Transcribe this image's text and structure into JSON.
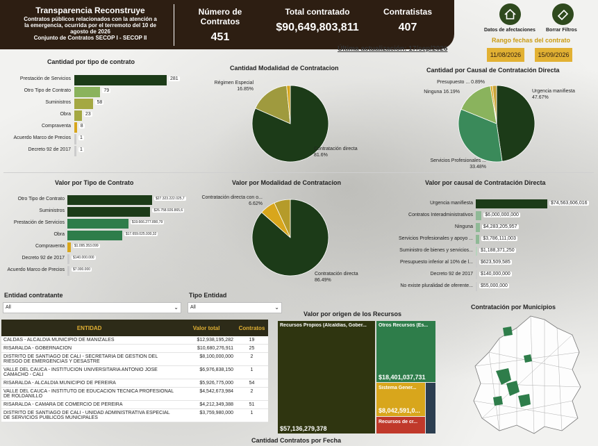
{
  "colors": {
    "dark_green": "#1c3b18",
    "green": "#2e7d4a",
    "light_green": "#8ab35d",
    "olive": "#a4a842",
    "gold": "#d8a61c",
    "brown": "#2d1e12"
  },
  "header": {
    "title": "Transparencia Reconstruye",
    "subtitle": "Contratos públicos relacionados con la atención a la emergencia, ocurrida por el terremoto del 10 de agosto de 2026",
    "source": "Conjunto de Contratos SECOP I - SECOP II",
    "kpis": [
      {
        "label": "Número de Contratos",
        "value": "451"
      },
      {
        "label": "Total contratado",
        "value": "$90,649,803,811"
      },
      {
        "label": "Contratistas",
        "value": "407"
      }
    ]
  },
  "last_update": "Última actualización: 17/sep/2026",
  "buttons": {
    "afectaciones": "Datos de afectaciones",
    "borrar": "Borrar Filtros",
    "afectaciones_icon": "home-icon",
    "borrar_icon": "eraser-icon"
  },
  "date_range": {
    "title": "Rango fechas del contrato",
    "start": "11/08/2026",
    "end": "15/09/2026"
  },
  "panels": {
    "cant_tipo": "Cantidad por tipo de contrato",
    "cant_modalidad": "Cantidad Modalidad de Contratacion",
    "cant_causal": "Cantidad por Causal de Contratación Directa",
    "valor_tipo": "Valor por Tipo de Contrato",
    "valor_modalidad": "Valor por Modalidad de Contratacion",
    "valor_causal": "Valor por causal de Contratación Directa",
    "origen": "Valor por origen de los Recursos",
    "municipios": "Contratación por Municipios",
    "fecha": "Cantidad Contratos por Fecha"
  },
  "filters": {
    "entidad": {
      "label": "Entidad contratante",
      "value": "All"
    },
    "tipo_entidad": {
      "label": "Tipo Entidad",
      "value": "All"
    }
  },
  "table": {
    "headers": [
      "ENTIDAD",
      "Valor total",
      "Contratos"
    ],
    "rows": [
      [
        "CALDAS - ALCALDIA MUNICIPIO DE MANIZALES",
        "$12,938,195,282",
        "19"
      ],
      [
        "RISARALDA - GOBERNACION",
        "$10,680,276,911",
        "25"
      ],
      [
        "DISTRITO DE SANTIAGO DE CALI - SECRETARIA DE GESTION DEL RIESGO DE EMERGENCIAS Y DESASTRE",
        "$8,100,000,000",
        "2"
      ],
      [
        "VALLE DEL CAUCA - INSTITUCION UNIVERSITARIA ANTONIO JOSE CAMACHO - CALI",
        "$6,976,838,150",
        "1"
      ],
      [
        "RISARALDA - ALCALDIA MUNICIPIO DE PEREIRA",
        "$5,926,775,000",
        "54"
      ],
      [
        "VALLE DEL CAUCA - INSTITUTO DE EDUCACION TECNICA PROFESIONAL DE ROLDANILLO",
        "$4,542,673,984",
        "2"
      ],
      [
        "RISARALDA - CAMARA DE COMERCIO DE PEREIRA",
        "$4,212,349,388",
        "51"
      ],
      [
        "DISTRITO DE SANTIAGO DE CALI - UNIDAD ADMINISTRATIVA ESPECIAL DE SERVICIOS PUBLICOS MUNICIPALES",
        "$3,759,980,000",
        "1"
      ]
    ]
  },
  "treemap": {
    "propios": {
      "label": "Recursos Propios (Alcaldías, Gober...",
      "value": "$57,136,279,378"
    },
    "otros": {
      "label": "Otros Recursos (Es...",
      "value": "$18,401,037,731"
    },
    "sistema": {
      "label": "Sistema Gener...",
      "value": "$8,042,591,0..."
    },
    "credito": {
      "label": "Recursos de cr..."
    }
  },
  "chart_data": [
    {
      "type": "bar",
      "title": "Cantidad por tipo de contrato",
      "categories": [
        "Prestación de Servicios",
        "Otro Tipo de Contrato",
        "Suministros",
        "Obra",
        "Compraventa",
        "Acuerdo Marco de Precios",
        "Decreto 92 de 2017"
      ],
      "values": [
        281,
        79,
        58,
        23,
        8,
        1,
        1
      ],
      "labels": [
        "281",
        "79",
        "58",
        "23",
        "8",
        "1",
        "1"
      ]
    },
    {
      "type": "pie",
      "title": "Cantidad Modalidad de Contratacion",
      "slices": [
        {
          "name": "Contratación directa",
          "value": 81.6,
          "label": "81.6%"
        },
        {
          "name": "Régimen Especial",
          "value": 16.85,
          "label": "16.85%"
        },
        {
          "name": "Otras",
          "value": 1.55,
          "label": ""
        }
      ]
    },
    {
      "type": "pie",
      "title": "Cantidad por Causal de Contratación Directa",
      "slices": [
        {
          "name": "Urgencia manifiesta",
          "value": 47.67,
          "label": "47.67%"
        },
        {
          "name": "Servicios Profesionales ...",
          "value": 33.48,
          "label": "33.48%"
        },
        {
          "name": "Ninguna",
          "value": 16.19,
          "label": "16.19%"
        },
        {
          "name": "Presupuesto ...",
          "value": 0.89,
          "label": "0.89%"
        },
        {
          "name": "Otras",
          "value": 1.77,
          "label": ""
        }
      ]
    },
    {
      "type": "bar",
      "title": "Valor por Tipo de Contrato",
      "categories": [
        "Otro Tipo de Contrato",
        "Suministros",
        "Prestación de Servicios",
        "Obra",
        "Compraventa",
        "Decreto 92 de 2017",
        "Acuerdo Marco de Precios"
      ],
      "values": [
        27323222025.7,
        26758926865.6,
        19666277890.79,
        17659025930.32,
        1095353099,
        140000000,
        7000000
      ],
      "labels": [
        "$27.323.222.025,7",
        "$26.758.926.865,6",
        "$19.666.277.890,79",
        "$17.659.025.930,32",
        "$1.095.353.099",
        "$140.000.000",
        "$7.000.000"
      ]
    },
    {
      "type": "pie",
      "title": "Valor por Modalidad de Contratacion",
      "slices": [
        {
          "name": "Contratación directa",
          "value": 86.49,
          "label": "86.49%"
        },
        {
          "name": "Contratación directa con o...",
          "value": 6.62,
          "label": "6.62%"
        },
        {
          "name": "Otras",
          "value": 6.89,
          "label": ""
        }
      ]
    },
    {
      "type": "bar",
      "title": "Valor por causal de Contratación Directa",
      "categories": [
        "Urgencia manifiesta",
        "Contratos Interadministrativos",
        "Ninguna",
        "Servicios Profesionales y apoyo ...",
        "Suministro de bienes y servicios...",
        "Presupuesto inferior al 10% de l...",
        "Decreto 92 de 2017",
        "No existe pluralidad de oferente..."
      ],
      "values": [
        74563606016,
        6000000000,
        4283205957,
        3786111003,
        1188371250,
        623509585,
        140000000,
        55000000
      ],
      "labels": [
        "$74,563,606,016",
        "$6,000,000,000",
        "$4,283,205,957",
        "$3,786,111,003",
        "$1,188,371,250",
        "$623,509,585",
        "$140,000,000",
        "$55,000,000"
      ]
    }
  ]
}
